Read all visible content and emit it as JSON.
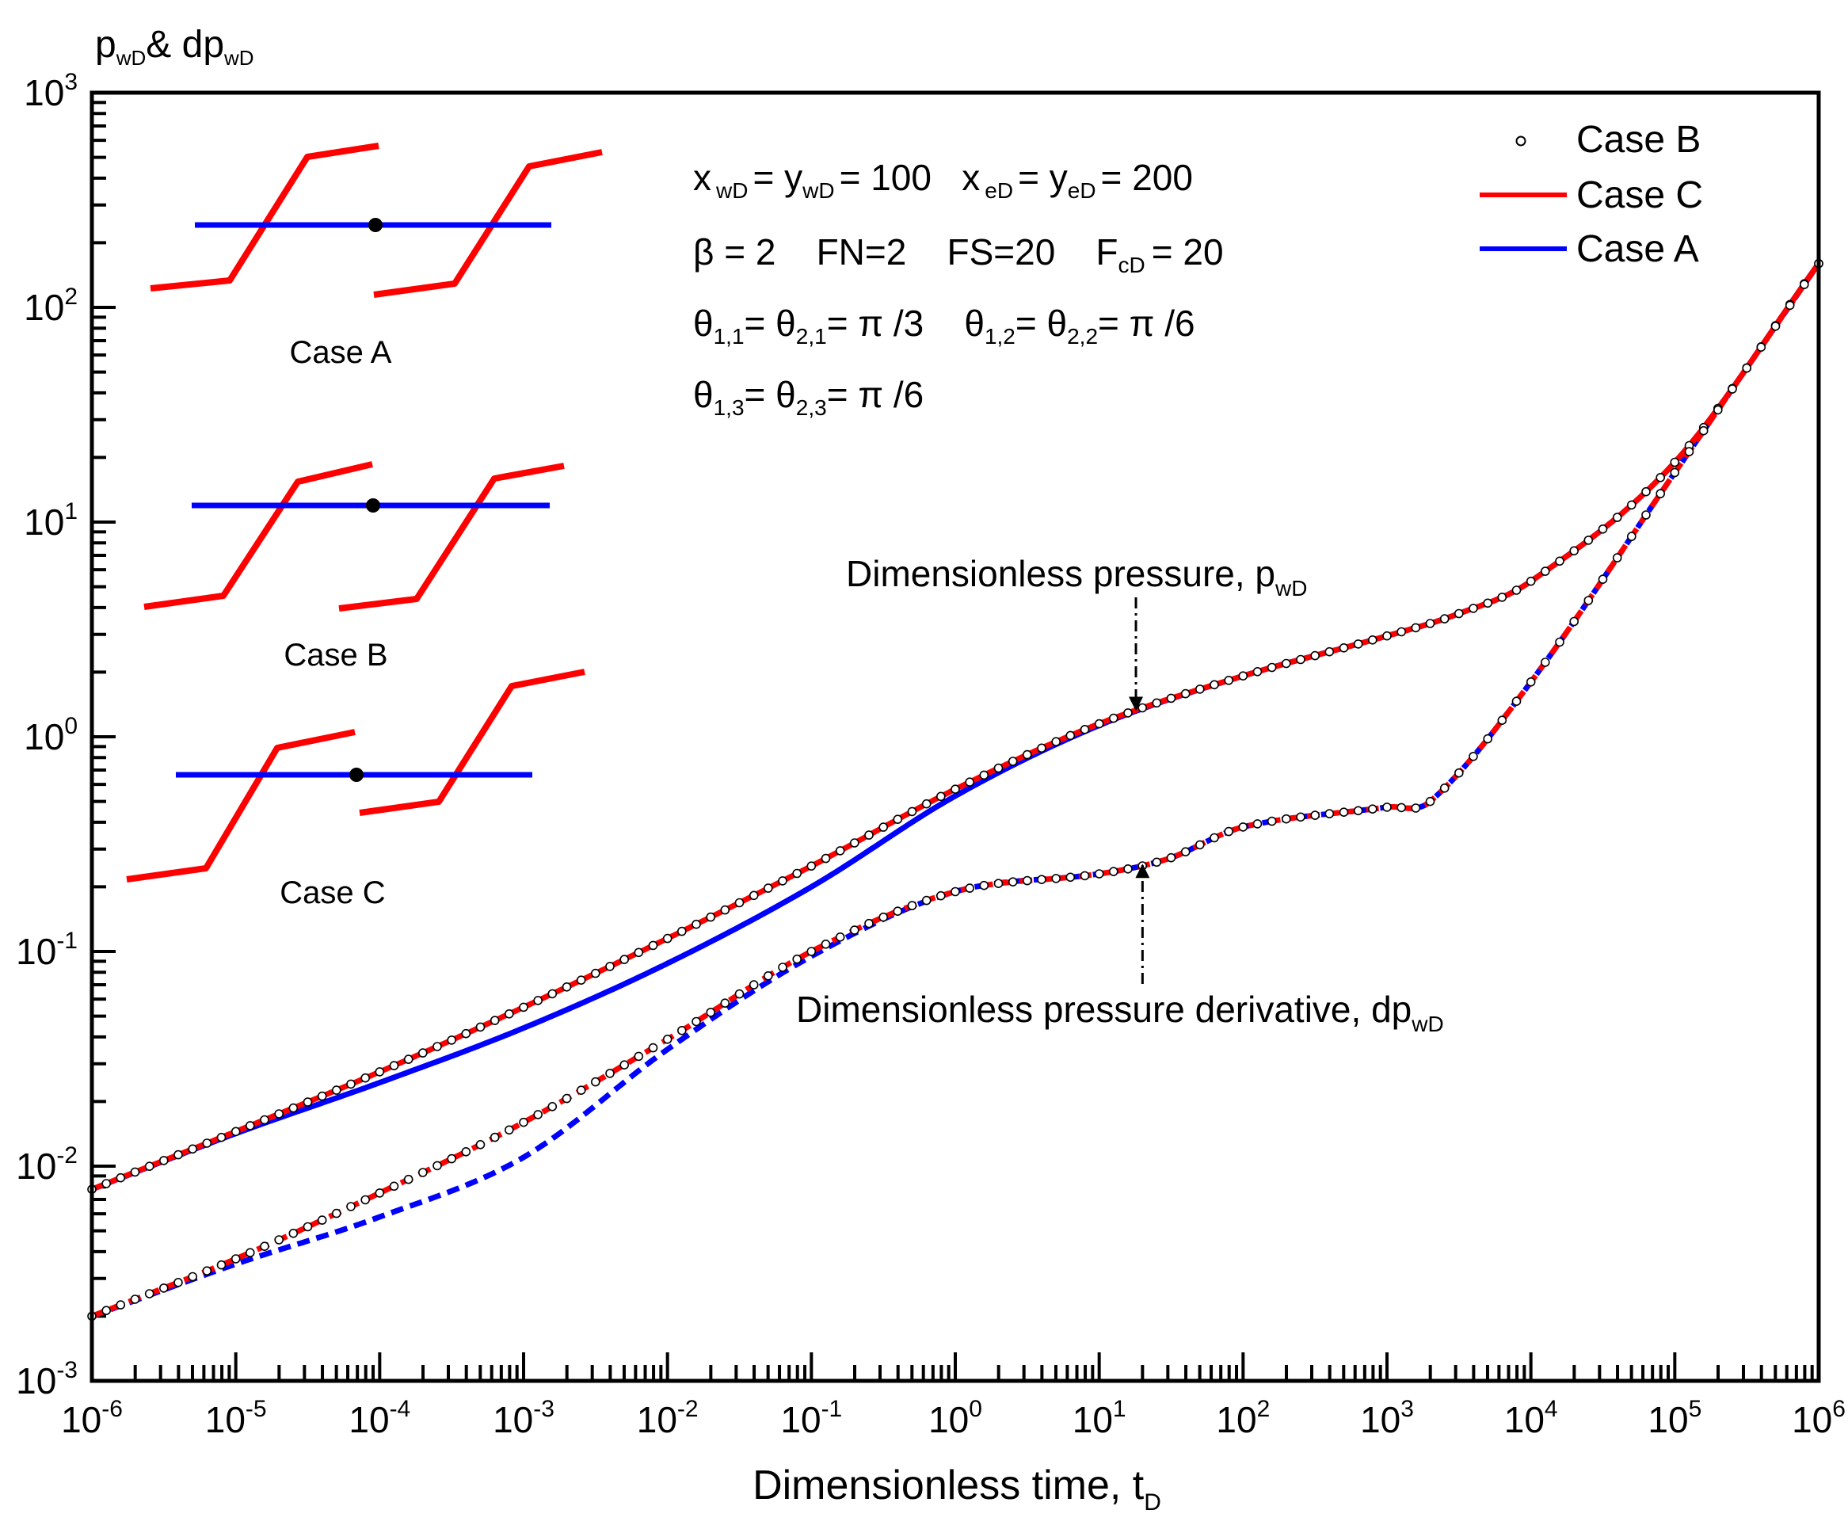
{
  "chart_data": {
    "type": "line",
    "xscale": "log",
    "yscale": "log",
    "xlim": [
      1e-06,
      1000000.0
    ],
    "ylim": [
      0.001,
      1000.0
    ],
    "ylabel": {
      "main": "p",
      "sub1": "wD",
      "mid": "& dp",
      "sub2": "wD"
    },
    "xlabel": {
      "main": "Dimensionless time, t",
      "sub": "D"
    },
    "x_ticks": [
      {
        "base": "10",
        "exp": "-6"
      },
      {
        "base": "10",
        "exp": "-5"
      },
      {
        "base": "10",
        "exp": "-4"
      },
      {
        "base": "10",
        "exp": "-3"
      },
      {
        "base": "10",
        "exp": "-2"
      },
      {
        "base": "10",
        "exp": "-1"
      },
      {
        "base": "10",
        "exp": "0"
      },
      {
        "base": "10",
        "exp": "1"
      },
      {
        "base": "10",
        "exp": "2"
      },
      {
        "base": "10",
        "exp": "3"
      },
      {
        "base": "10",
        "exp": "4"
      },
      {
        "base": "10",
        "exp": "5"
      },
      {
        "base": "10",
        "exp": "6"
      }
    ],
    "y_ticks": [
      {
        "base": "10",
        "exp": "-3"
      },
      {
        "base": "10",
        "exp": "-2"
      },
      {
        "base": "10",
        "exp": "-1"
      },
      {
        "base": "10",
        "exp": "0"
      },
      {
        "base": "10",
        "exp": "1"
      },
      {
        "base": "10",
        "exp": "2"
      },
      {
        "base": "10",
        "exp": "3"
      }
    ],
    "legend": {
      "position": "top-right",
      "items": [
        {
          "label": "Case B",
          "style": "circle-marker",
          "color": "#000000"
        },
        {
          "label": "Case C",
          "style": "line",
          "color": "#ff0000"
        },
        {
          "label": "Case A",
          "style": "line",
          "color": "#0000ff"
        }
      ]
    },
    "params": {
      "line1": {
        "a": "x",
        "a_sub": "wD",
        "b": "= y",
        "b_sub": "wD",
        "c": "= 100   x",
        "c_sub": "eD",
        "d": "= y",
        "d_sub": "eD",
        "e": "= 200"
      },
      "line2": {
        "a": "β = 2    FN=2    FS=20    F",
        "a_sub": "cD",
        "b": "= 20"
      },
      "line3": {
        "a": "θ",
        "a_sub": "1,1",
        "b": "= θ",
        "b_sub": "2,1",
        "c": "= π /3    θ",
        "c_sub": "1,2",
        "d": "= θ",
        "d_sub": "2,2",
        "e": "= π /6"
      },
      "line4": {
        "a": "θ",
        "a_sub": "1,3",
        "b": "= θ",
        "b_sub": "2,3",
        "c": "= π /6"
      }
    },
    "annotations": {
      "pressure": {
        "text": "Dimensionless pressure, p",
        "sub": "wD",
        "arrow_to": [
          18,
          1.25
        ]
      },
      "derivative": {
        "text": "Dimensionless pressure derivative, dp",
        "sub": "wD",
        "arrow_to": [
          20,
          0.27
        ]
      }
    },
    "inset_labels": [
      "Case A",
      "Case B",
      "Case C"
    ],
    "series": [
      {
        "name": "Case C",
        "kind": "pressure",
        "color": "#ff0000",
        "dash": "solid",
        "x": [
          1e-06,
          1e-05,
          0.0001,
          0.001,
          0.01,
          0.1,
          1,
          10,
          100,
          1000,
          3000,
          10000,
          100000,
          1000000
        ],
        "y": [
          0.0078,
          0.0145,
          0.0275,
          0.055,
          0.115,
          0.25,
          0.57,
          1.15,
          1.92,
          2.95,
          3.7,
          5.3,
          19,
          160
        ]
      },
      {
        "name": "Case A",
        "kind": "pressure",
        "color": "#0000ff",
        "dash": "solid",
        "x": [
          1e-06,
          1e-05,
          0.0001,
          0.001,
          0.01,
          0.1,
          1,
          10,
          100,
          1000,
          3000,
          10000,
          100000,
          1000000
        ],
        "y": [
          0.0078,
          0.0142,
          0.0245,
          0.044,
          0.088,
          0.2,
          0.53,
          1.13,
          1.92,
          2.95,
          3.7,
          5.3,
          19,
          160
        ]
      },
      {
        "name": "Case B",
        "kind": "pressure",
        "color": "#000000",
        "markers": true,
        "x": [
          1e-06,
          1e-05,
          0.0001,
          0.001,
          0.01,
          0.1,
          1,
          10,
          100,
          1000,
          3000,
          10000,
          100000,
          1000000
        ],
        "y": [
          0.0078,
          0.0145,
          0.0275,
          0.055,
          0.115,
          0.25,
          0.57,
          1.15,
          1.92,
          2.95,
          3.7,
          5.3,
          19,
          160
        ]
      },
      {
        "name": "Case C",
        "kind": "derivative",
        "color": "#ff0000",
        "dash": "dashed",
        "x": [
          1e-06,
          1e-05,
          0.0001,
          0.001,
          0.01,
          0.1,
          1,
          10,
          30,
          100,
          1000,
          2000,
          10000,
          100000,
          1000000
        ],
        "y": [
          0.002,
          0.0037,
          0.0075,
          0.016,
          0.039,
          0.1,
          0.19,
          0.23,
          0.27,
          0.38,
          0.47,
          0.5,
          1.8,
          17,
          160
        ]
      },
      {
        "name": "Case A",
        "kind": "derivative",
        "color": "#0000ff",
        "dash": "dashed",
        "x": [
          1e-06,
          1e-05,
          0.0001,
          0.001,
          0.01,
          0.1,
          1,
          10,
          30,
          100,
          1000,
          2000,
          10000,
          100000,
          1000000
        ],
        "y": [
          0.002,
          0.0035,
          0.0058,
          0.011,
          0.035,
          0.095,
          0.19,
          0.23,
          0.27,
          0.38,
          0.47,
          0.5,
          1.8,
          17,
          160
        ]
      },
      {
        "name": "Case B",
        "kind": "derivative",
        "color": "#000000",
        "markers": true,
        "x": [
          1e-06,
          1e-05,
          0.0001,
          0.001,
          0.01,
          0.1,
          1,
          10,
          30,
          100,
          1000,
          2000,
          10000,
          100000,
          1000000
        ],
        "y": [
          0.002,
          0.0037,
          0.0075,
          0.016,
          0.039,
          0.1,
          0.19,
          0.23,
          0.27,
          0.38,
          0.47,
          0.5,
          1.8,
          17,
          160
        ]
      }
    ]
  }
}
